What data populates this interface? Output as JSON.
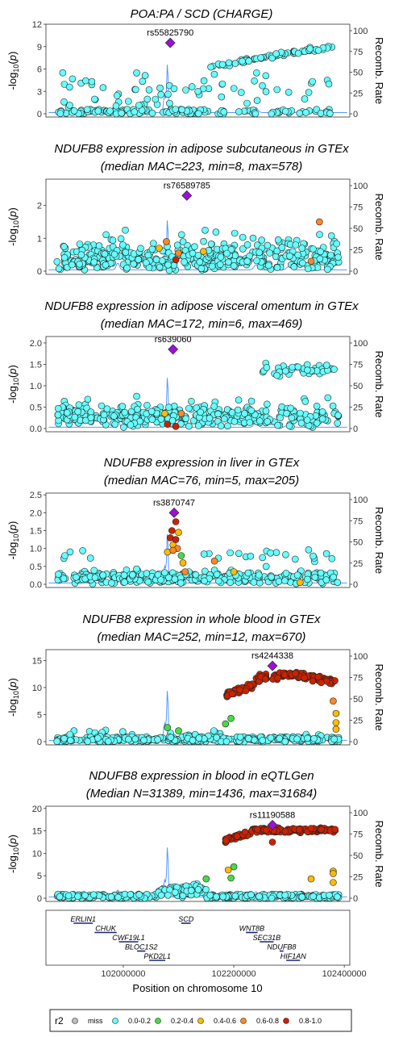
{
  "chart_data": {
    "type": "scatter",
    "x_axis": {
      "label": "Position on chromosome 10",
      "range": [
        101860000,
        102410000
      ],
      "ticks": [
        102000000,
        102200000,
        102400000
      ],
      "tick_labels": [
        "102000000",
        "102200000",
        "102400000"
      ]
    },
    "y_label_left": "-log10(p)",
    "y_label_right": "Recomb. Rate",
    "recomb_ticks": [
      0,
      25,
      50,
      75,
      100
    ],
    "legend": {
      "title": "r2",
      "items": [
        {
          "label": "miss",
          "color": "#bebebe"
        },
        {
          "label": "0.0-0.2",
          "color": "#66ffff"
        },
        {
          "label": "0.2-0.4",
          "color": "#44dd44"
        },
        {
          "label": "0.4-0.6",
          "color": "#ffbb00"
        },
        {
          "label": "0.6-0.8",
          "color": "#ff8822"
        },
        {
          "label": "0.8-1.0",
          "color": "#cc2200"
        }
      ]
    },
    "lead_color": "#9a10d8",
    "panels": [
      {
        "title_lines": [
          "POA:PA / SCD (CHARGE)"
        ],
        "ylim": [
          0,
          12
        ],
        "yticks": [
          0,
          3,
          6,
          9,
          12
        ],
        "lead_snp": "rs55825790",
        "lead_pos": 102085000,
        "lead_p": 9.5
      },
      {
        "title_lines": [
          "NDUFB8 expression in adipose subcutaneous in GTEx",
          "(median MAC=223, min=8, max=578)"
        ],
        "ylim": [
          0,
          2.8
        ],
        "yticks": [
          0,
          1,
          2
        ],
        "lead_snp": "rs76589785",
        "lead_pos": 102115000,
        "lead_p": 2.3
      },
      {
        "title_lines": [
          "NDUFB8 expression in adipose visceral omentum in GTEx",
          "(median MAC=172, min=6, max=469)"
        ],
        "ylim": [
          0,
          2.15
        ],
        "yticks": [
          0,
          0.5,
          1,
          1.5,
          2
        ],
        "ytick_labels": [
          "0.0",
          "0.5",
          "1.0",
          "1.5",
          "2.0"
        ],
        "lead_snp": "rs639060",
        "lead_pos": 102090000,
        "lead_p": 1.85
      },
      {
        "title_lines": [
          "NDUFB8 expression in liver in GTEx",
          "(median MAC=76, min=5, max=205)"
        ],
        "ylim": [
          0,
          2.55
        ],
        "yticks": [
          0,
          0.5,
          1,
          1.5,
          2,
          2.5
        ],
        "ytick_labels": [
          "0.0",
          "0.5",
          "1.0",
          "1.5",
          "2.0",
          "2.5"
        ],
        "lead_snp": "rs3870747",
        "lead_pos": 102092000,
        "lead_p": 2.0
      },
      {
        "title_lines": [
          "NDUFB8 expression in whole blood in GTEx",
          "(median MAC=252, min=12, max=670)"
        ],
        "ylim": [
          0,
          17
        ],
        "yticks": [
          0,
          5,
          10,
          15
        ],
        "lead_snp": "rs4244338",
        "lead_pos": 102270000,
        "lead_p": 14.0
      },
      {
        "title_lines": [
          "NDUFB8 expression in blood in eQTLGen",
          "(Median N=31389, min=1436, max=31684)"
        ],
        "ylim": [
          0,
          20.5
        ],
        "yticks": [
          0,
          5,
          10,
          15,
          20
        ],
        "lead_snp": "rs11190588",
        "lead_pos": 102270000,
        "lead_p": 16.3
      }
    ],
    "genes": [
      {
        "name": "ERLIN1",
        "start": 101910000,
        "end": 101945000,
        "row": 0
      },
      {
        "name": "SCD",
        "start": 102105000,
        "end": 102122000,
        "row": 0
      },
      {
        "name": "CHUK",
        "start": 101948000,
        "end": 101988000,
        "row": 1
      },
      {
        "name": "WNT8B",
        "start": 102222000,
        "end": 102243000,
        "row": 1
      },
      {
        "name": "CWF19L1",
        "start": 101992000,
        "end": 102027000,
        "row": 2
      },
      {
        "name": "SEC31B",
        "start": 102247000,
        "end": 102272000,
        "row": 2
      },
      {
        "name": "BLOC1S2",
        "start": 102025000,
        "end": 102040000,
        "row": 3
      },
      {
        "name": "NDUFB8",
        "start": 102283000,
        "end": 102290000,
        "row": 3
      },
      {
        "name": "PKD2L1",
        "start": 102047000,
        "end": 102076000,
        "row": 4
      },
      {
        "name": "HIF1AN",
        "start": 102295000,
        "end": 102320000,
        "row": 4
      }
    ]
  }
}
